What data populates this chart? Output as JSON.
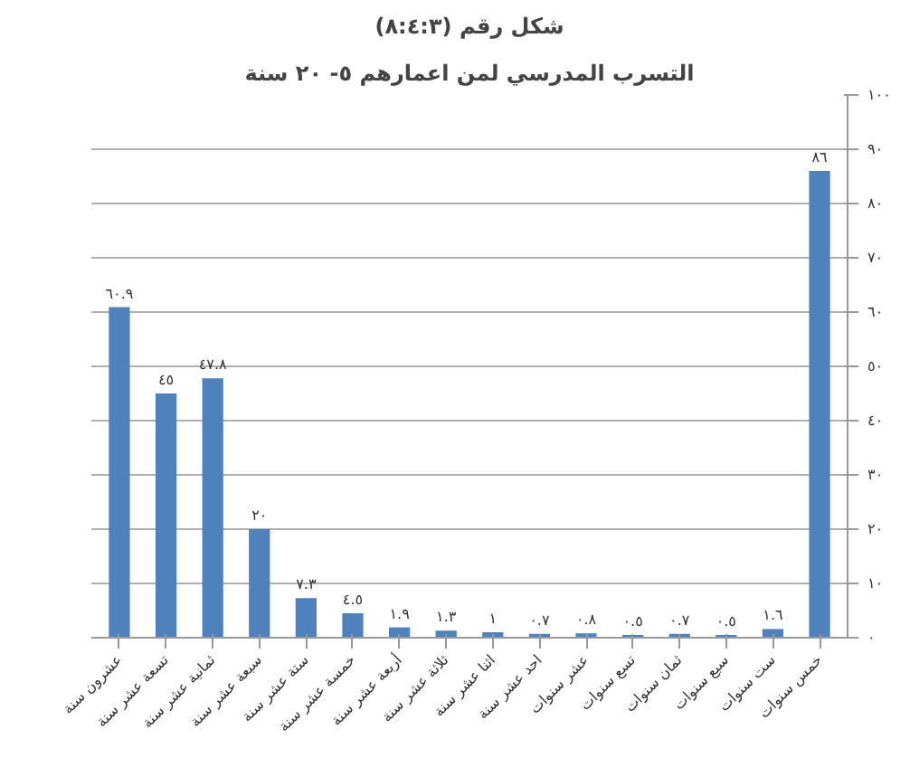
{
  "chart_data": {
    "type": "bar",
    "title": "شكل رقم (٨:٤:٣)",
    "subtitle": "التسرب المدرسي لمن اعمارهم ٥- ٢٠ سنة",
    "categories": [
      "عشرون سنة",
      "تسعة عشر سنة",
      "ثمانية عشر سنة",
      "سبعة عشر سنة",
      "ستة عشر سنة",
      "خمسة عشر سنة",
      "أربعة عشر سنة",
      "ثلاثة عشر سنة",
      "اثنا عشر سنة",
      "احد عشر سنة",
      "عشر سنوات",
      "تسع سنوات",
      "ثمان سنوات",
      "سبع سنوات",
      "ست سنوات",
      "خمس سنوات"
    ],
    "values": [
      60.9,
      45,
      47.8,
      20,
      7.3,
      4.5,
      1.9,
      1.3,
      1,
      0.7,
      0.8,
      0.5,
      0.7,
      0.5,
      1.6,
      86
    ],
    "value_labels": [
      "٦٠.٩",
      "٤٥",
      "٤٧.٨",
      "٢٠",
      "٧.٣",
      "٤.٥",
      "١.٩",
      "١.٣",
      "١",
      "٠.٧",
      "٠.٨",
      "٠.٥",
      "٠.٧",
      "٠.٥",
      "١.٦",
      "٨٦"
    ],
    "color": "#4f81bd",
    "ylim": [
      0,
      100
    ],
    "yticks": [
      {
        "value": 0,
        "label": "٠"
      },
      {
        "value": 10,
        "label": "١٠"
      },
      {
        "value": 20,
        "label": "٢٠"
      },
      {
        "value": 30,
        "label": "٣٠"
      },
      {
        "value": 40,
        "label": "٤٠"
      },
      {
        "value": 50,
        "label": "٥٠"
      },
      {
        "value": 60,
        "label": "٦٠"
      },
      {
        "value": 70,
        "label": "٧٠"
      },
      {
        "value": 80,
        "label": "٨٠"
      },
      {
        "value": 90,
        "label": "٩٠"
      },
      {
        "value": 100,
        "label": "١٠٠"
      }
    ],
    "grid": "y"
  }
}
